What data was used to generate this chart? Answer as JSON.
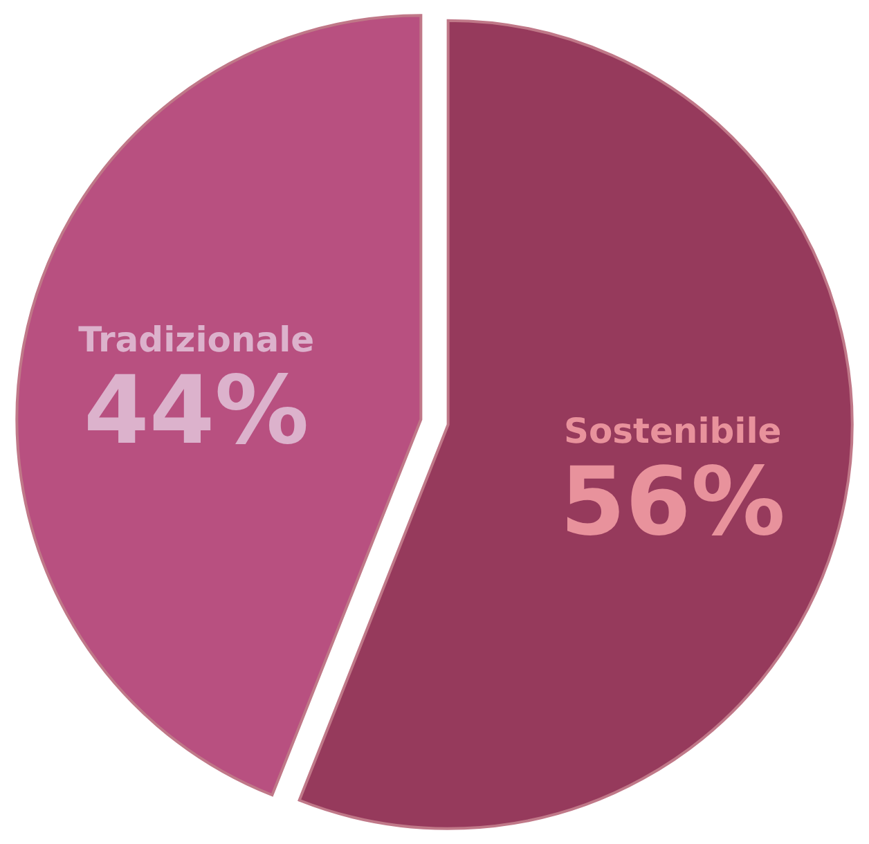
{
  "chart_data": {
    "type": "pie",
    "categories": [
      "Sostenibile",
      "Tradizionale"
    ],
    "values": [
      56,
      44
    ],
    "colors": [
      "#963a5c",
      "#b85080"
    ],
    "value_labels": [
      "56%",
      "44%"
    ],
    "legend": false
  }
}
